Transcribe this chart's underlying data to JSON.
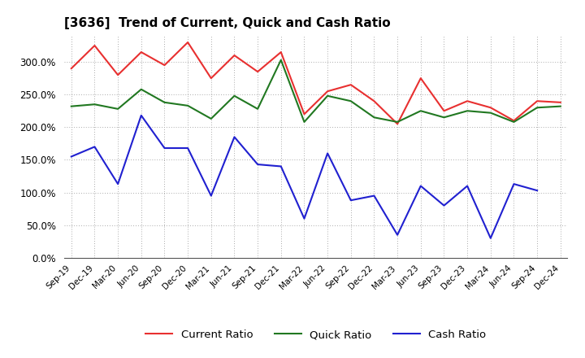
{
  "title": "[3636]  Trend of Current, Quick and Cash Ratio",
  "labels": [
    "Sep-19",
    "Dec-19",
    "Mar-20",
    "Jun-20",
    "Sep-20",
    "Dec-20",
    "Mar-21",
    "Jun-21",
    "Sep-21",
    "Dec-21",
    "Mar-22",
    "Jun-22",
    "Sep-22",
    "Dec-22",
    "Mar-23",
    "Jun-23",
    "Sep-23",
    "Dec-23",
    "Mar-24",
    "Jun-24",
    "Sep-24",
    "Dec-24"
  ],
  "current_ratio": [
    290,
    325,
    280,
    315,
    295,
    330,
    275,
    310,
    285,
    315,
    220,
    255,
    265,
    240,
    205,
    275,
    225,
    240,
    230,
    210,
    240,
    238
  ],
  "quick_ratio": [
    232,
    235,
    228,
    258,
    238,
    233,
    213,
    248,
    228,
    303,
    208,
    248,
    240,
    215,
    208,
    225,
    215,
    225,
    222,
    208,
    230,
    232
  ],
  "cash_ratio": [
    155,
    170,
    113,
    218,
    168,
    168,
    95,
    185,
    143,
    140,
    60,
    160,
    88,
    95,
    35,
    110,
    80,
    110,
    30,
    113,
    103,
    null
  ],
  "ylim": [
    0,
    340
  ],
  "yticks": [
    0,
    50,
    100,
    150,
    200,
    250,
    300
  ],
  "line_colors": {
    "current": "#e83030",
    "quick": "#217821",
    "cash": "#2020d0"
  },
  "background_color": "#ffffff",
  "grid_color": "#aaaaaa",
  "legend_labels": [
    "Current Ratio",
    "Quick Ratio",
    "Cash Ratio"
  ],
  "legend_line_colors": [
    "#e83030",
    "#217821",
    "#2020d0"
  ]
}
